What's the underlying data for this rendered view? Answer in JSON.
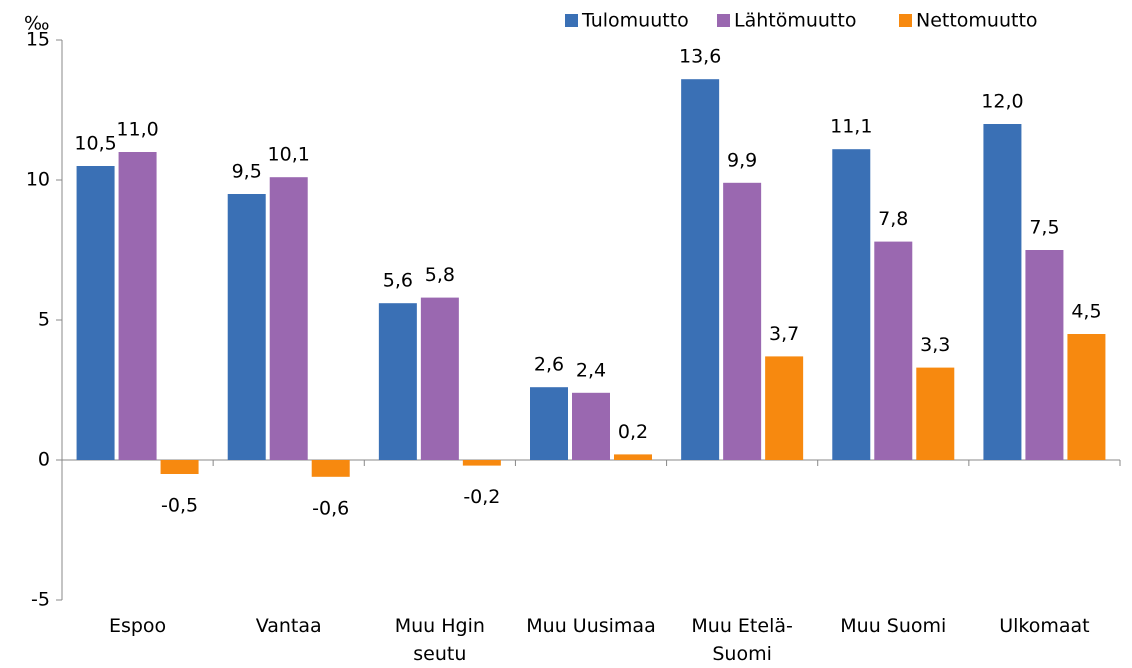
{
  "chart_data": {
    "type": "bar",
    "y_label": "‰",
    "categories": [
      "Espoo",
      "Vantaa",
      "Muu Hgin\nseutu",
      "Muu Uusimaa",
      "Muu Etelä-\nSuomi",
      "Muu Suomi",
      "Ulkomaat"
    ],
    "series": [
      {
        "name": "Tulomuutto",
        "color": "#3a70b5",
        "values": [
          10.5,
          9.5,
          5.6,
          2.6,
          13.6,
          11.1,
          12.0
        ],
        "value_labels": [
          "10,5",
          "9,5",
          "5,6",
          "2,6",
          "13,6",
          "11,1",
          "12,0"
        ]
      },
      {
        "name": "Lähtömuutto",
        "color": "#9a68b0",
        "values": [
          11.0,
          10.1,
          5.8,
          2.4,
          9.9,
          7.8,
          7.5
        ],
        "value_labels": [
          "11,0",
          "10,1",
          "5,8",
          "2,4",
          "9,9",
          "7,8",
          "7,5"
        ]
      },
      {
        "name": "Nettomuutto",
        "color": "#f7890f",
        "values": [
          -0.5,
          -0.6,
          -0.2,
          0.2,
          3.7,
          3.3,
          4.5
        ],
        "value_labels": [
          "-0,5",
          "-0,6",
          "-0,2",
          "0,2",
          "3,7",
          "3,3",
          "4,5"
        ]
      }
    ],
    "ylim": [
      -5,
      15
    ],
    "yticks": [
      -5,
      0,
      5,
      10,
      15
    ],
    "legend": "top-right"
  }
}
